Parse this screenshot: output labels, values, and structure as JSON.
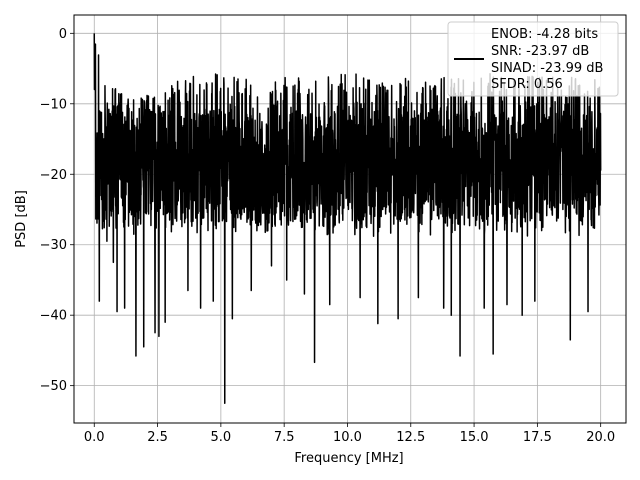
{
  "chart_data": {
    "type": "line",
    "xlabel": "Frequency [MHz]",
    "ylabel": "PSD [dB]",
    "xlim": [
      -0.8,
      21.0
    ],
    "ylim": [
      -55.3,
      2.6
    ],
    "x_ticks": [
      0.0,
      2.5,
      5.0,
      7.5,
      10.0,
      12.5,
      15.0,
      17.5,
      20.0
    ],
    "x_tick_labels": [
      "0.0",
      "2.5",
      "5.0",
      "7.5",
      "10.0",
      "12.5",
      "15.0",
      "17.5",
      "20.0"
    ],
    "y_ticks": [
      0,
      -10,
      -20,
      -30,
      -40,
      -50
    ],
    "y_tick_labels": [
      "0",
      "−10",
      "−20",
      "−30",
      "−40",
      "−50"
    ],
    "grid": true,
    "legend_placement": "upper right",
    "legend_entries": [
      "ENOB: -4.28 bits",
      "SNR: -23.97 dB",
      "SINAD: -23.99 dB",
      "SFDR: 0.56"
    ],
    "series": [
      {
        "color": "#000000",
        "x_range": [
          0.0,
          20.0
        ],
        "envelope_top": [
          [
            0.0,
            0.0
          ],
          [
            0.4,
            -5.5
          ],
          [
            0.8,
            -7.5
          ],
          [
            1.5,
            -8.5
          ],
          [
            2.5,
            -9.0
          ],
          [
            3.2,
            -6.8
          ],
          [
            4.0,
            -6.0
          ],
          [
            4.8,
            -5.5
          ],
          [
            6.0,
            -6.5
          ],
          [
            8.0,
            -6.0
          ],
          [
            10.0,
            -5.5
          ],
          [
            12.0,
            -6.5
          ],
          [
            14.0,
            -5.8
          ],
          [
            16.0,
            -5.5
          ],
          [
            18.0,
            -6.0
          ],
          [
            20.0,
            -6.5
          ]
        ],
        "band_low": -26,
        "band_high": -9,
        "notable_dips": [
          [
            0.2,
            -38.0
          ],
          [
            0.5,
            -29.5
          ],
          [
            0.75,
            -32.5
          ],
          [
            0.9,
            -39.5
          ],
          [
            1.2,
            -39.0
          ],
          [
            1.65,
            -45.8
          ],
          [
            1.95,
            -44.5
          ],
          [
            2.4,
            -42.5
          ],
          [
            2.55,
            -43.0
          ],
          [
            2.8,
            -41.0
          ],
          [
            3.7,
            -36.5
          ],
          [
            4.2,
            -39.0
          ],
          [
            4.7,
            -38.0
          ],
          [
            5.15,
            -52.5
          ],
          [
            5.45,
            -40.5
          ],
          [
            6.2,
            -36.5
          ],
          [
            7.0,
            -33.0
          ],
          [
            7.6,
            -35.0
          ],
          [
            8.3,
            -37.0
          ],
          [
            8.7,
            -46.7
          ],
          [
            9.3,
            -38.5
          ],
          [
            10.5,
            -37.5
          ],
          [
            11.2,
            -41.2
          ],
          [
            12.0,
            -40.5
          ],
          [
            12.8,
            -37.5
          ],
          [
            13.8,
            -39.0
          ],
          [
            14.1,
            -40.0
          ],
          [
            14.45,
            -45.8
          ],
          [
            15.4,
            -39.0
          ],
          [
            15.75,
            -45.5
          ],
          [
            16.3,
            -38.5
          ],
          [
            16.9,
            -40.0
          ],
          [
            17.4,
            -38.0
          ],
          [
            18.8,
            -43.5
          ],
          [
            19.5,
            -39.5
          ]
        ]
      }
    ]
  }
}
